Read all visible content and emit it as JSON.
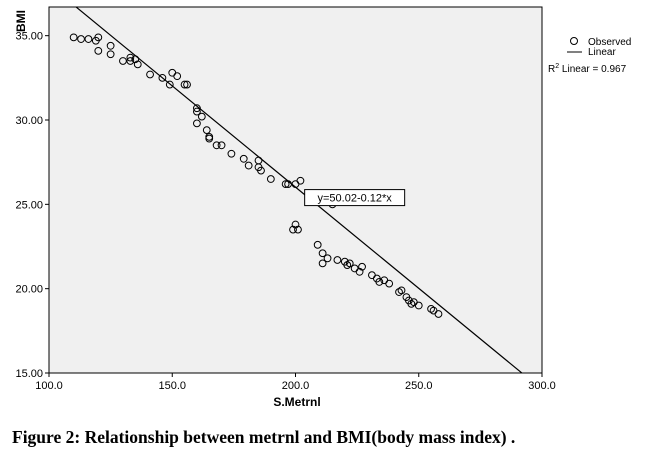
{
  "caption": "Figure 2: Relationship between metrnl and BMI(body mass index) .",
  "chart_data": {
    "type": "scatter",
    "xlabel": "S.Metrnl",
    "ylabel": "BMI",
    "xlim": [
      100,
      300
    ],
    "ylim": [
      15,
      36.7
    ],
    "xticks": [
      100,
      150,
      200,
      250,
      300
    ],
    "xtick_labels": [
      "100.0",
      "150.0",
      "200.0",
      "250.0",
      "300.0"
    ],
    "yticks": [
      15,
      20,
      25,
      30,
      35
    ],
    "ytick_labels": [
      "15.00",
      "20.00",
      "25.00",
      "30.00",
      "35.00"
    ],
    "grid": false,
    "legend_position": "top-right",
    "legend": {
      "observed": "Observed",
      "linear": "Linear",
      "r2_prefix": "R",
      "r2_sup": "2",
      "r2_suffix": " Linear = 0.967"
    },
    "fit": {
      "label": "y=50.02-0.12*x",
      "intercept": 50.02,
      "slope": -0.12,
      "anchor": [
        224,
        25.4
      ]
    },
    "colors": {
      "plot_bg": "#f0f0f0",
      "marker": "#000000",
      "line": "#000000"
    },
    "series": [
      {
        "name": "Observed",
        "points": [
          [
            110,
            34.9
          ],
          [
            113,
            34.8
          ],
          [
            116,
            34.8
          ],
          [
            119,
            34.7
          ],
          [
            120,
            34.9
          ],
          [
            120,
            34.1
          ],
          [
            125,
            34.4
          ],
          [
            125,
            33.9
          ],
          [
            130,
            33.5
          ],
          [
            133,
            33.7
          ],
          [
            133,
            33.5
          ],
          [
            135,
            33.6
          ],
          [
            136,
            33.3
          ],
          [
            141,
            32.7
          ],
          [
            146,
            32.5
          ],
          [
            149,
            32.1
          ],
          [
            150,
            32.8
          ],
          [
            152,
            32.6
          ],
          [
            155,
            32.1
          ],
          [
            156,
            32.1
          ],
          [
            160,
            30.7
          ],
          [
            160,
            30.5
          ],
          [
            160,
            29.8
          ],
          [
            162,
            30.2
          ],
          [
            164,
            29.4
          ],
          [
            165,
            29.0
          ],
          [
            165,
            28.9
          ],
          [
            168,
            28.5
          ],
          [
            170,
            28.5
          ],
          [
            174,
            28.0
          ],
          [
            179,
            27.7
          ],
          [
            181,
            27.3
          ],
          [
            185,
            27.6
          ],
          [
            185,
            27.2
          ],
          [
            186,
            27.0
          ],
          [
            190,
            26.5
          ],
          [
            196,
            26.2
          ],
          [
            197,
            26.2
          ],
          [
            200,
            26.2
          ],
          [
            202,
            26.4
          ],
          [
            200,
            23.8
          ],
          [
            199,
            23.5
          ],
          [
            201,
            23.5
          ],
          [
            215,
            25.0
          ],
          [
            209,
            22.6
          ],
          [
            211,
            22.1
          ],
          [
            211,
            21.5
          ],
          [
            213,
            21.8
          ],
          [
            217,
            21.7
          ],
          [
            220,
            21.6
          ],
          [
            221,
            21.4
          ],
          [
            222,
            21.5
          ],
          [
            224,
            21.2
          ],
          [
            226,
            21.0
          ],
          [
            227,
            21.3
          ],
          [
            231,
            20.8
          ],
          [
            233,
            20.6
          ],
          [
            234,
            20.4
          ],
          [
            236,
            20.5
          ],
          [
            238,
            20.3
          ],
          [
            242,
            19.8
          ],
          [
            243,
            19.9
          ],
          [
            245,
            19.5
          ],
          [
            246,
            19.3
          ],
          [
            247,
            19.1
          ],
          [
            248,
            19.2
          ],
          [
            250,
            19.0
          ],
          [
            255,
            18.8
          ],
          [
            256,
            18.7
          ],
          [
            258,
            18.5
          ]
        ]
      }
    ]
  }
}
